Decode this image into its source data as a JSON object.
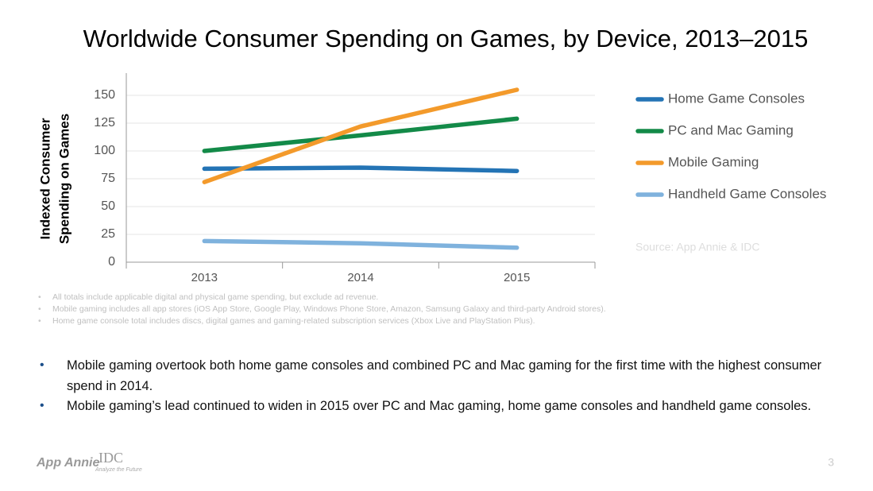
{
  "chart_data": {
    "type": "line",
    "title": "Worldwide Consumer Spending on Games, by Device, 2013–2015",
    "y_label": [
      "Indexed Consumer",
      "Spending on Games"
    ],
    "categories": [
      "2013",
      "2014",
      "2015"
    ],
    "series": [
      {
        "name": "Home Game Consoles",
        "color": "#2474b5",
        "values": [
          84,
          85,
          82
        ]
      },
      {
        "name": "PC and Mac Gaming",
        "color": "#138a48",
        "values": [
          100,
          114,
          129
        ]
      },
      {
        "name": "Mobile Gaming",
        "color": "#f39a2b",
        "values": [
          72,
          122,
          155
        ]
      },
      {
        "name": "Handheld Game Consoles",
        "color": "#7fb2dd",
        "values": [
          19,
          17,
          13
        ]
      }
    ],
    "ylim": [
      0,
      170
    ],
    "yticks": [
      0,
      25,
      50,
      75,
      100,
      125,
      150
    ],
    "grid": true,
    "legend": "right",
    "source": "Source: App Annie & IDC"
  },
  "footnotes": [
    "All totals include applicable digital and physical game spending, but exclude ad revenue.",
    "Mobile gaming includes all app stores (iOS App Store, Google Play, Windows Phone Store, Amazon, Samsung Galaxy and third-party Android stores).",
    "Home game console total includes discs, digital games and gaming-related subscription services (Xbox Live and PlayStation Plus)."
  ],
  "bullets": [
    "Mobile gaming overtook both home game consoles and combined PC and Mac gaming for the first time with the highest consumer spend in 2014.",
    "Mobile gaming’s lead continued to widen in 2015 over PC and Mac gaming, home game consoles and handheld game consoles."
  ],
  "logos": {
    "app_annie": "App Annie",
    "idc": "IDC",
    "idc_tagline": "Analyze the Future"
  },
  "page_number": "3"
}
